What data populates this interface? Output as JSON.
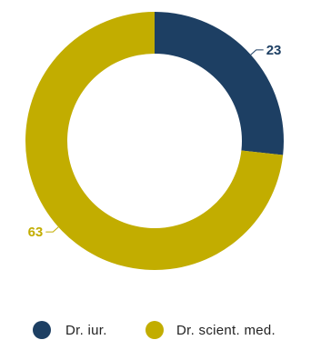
{
  "chart_data": {
    "type": "pie",
    "variant": "donut",
    "title": "",
    "slices": [
      {
        "name": "Dr. iur.",
        "value": 23,
        "label": "23",
        "color": "#1d3f63"
      },
      {
        "name": "Dr. scient. med.",
        "value": 63,
        "label": "63",
        "color": "#c2ad00"
      }
    ],
    "start_angle_deg": 0,
    "direction": "clockwise",
    "legend": {
      "position": "bottom",
      "items": [
        "Dr. iur.",
        "Dr. scient. med."
      ]
    }
  }
}
